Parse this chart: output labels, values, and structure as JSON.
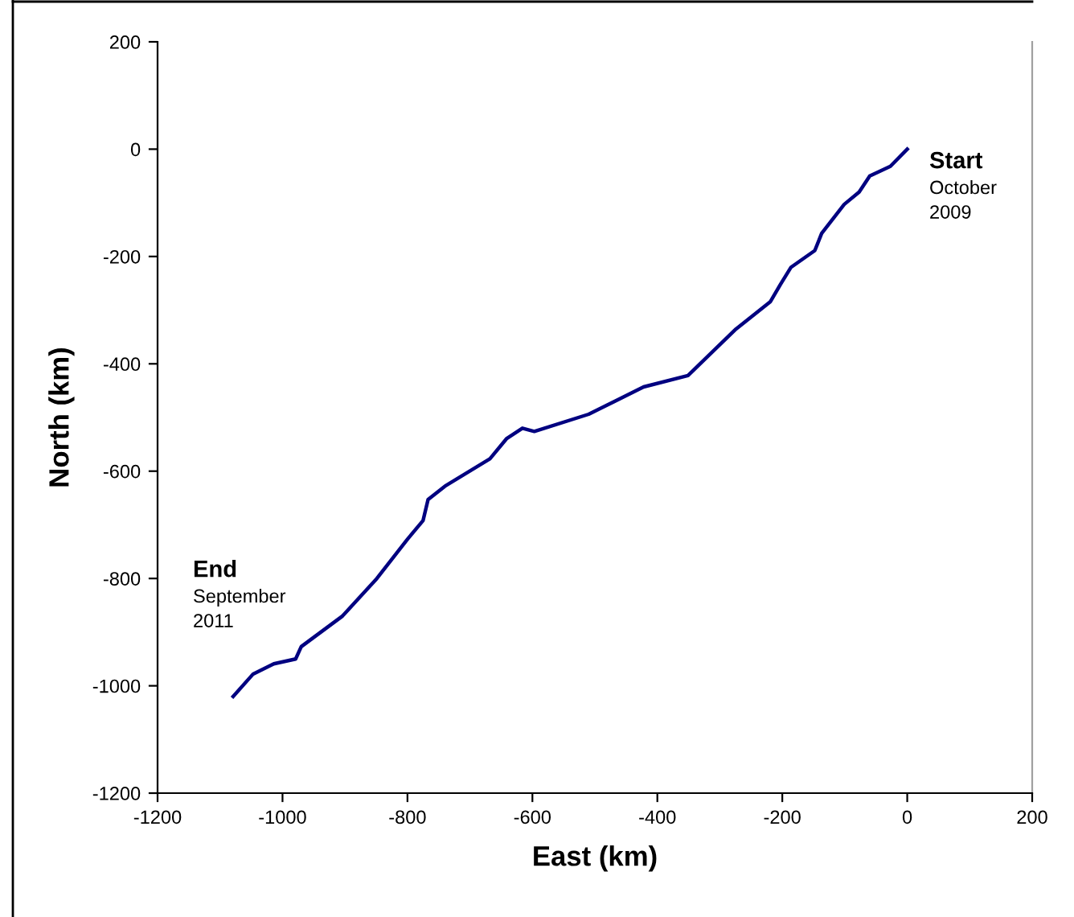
{
  "chart_data": {
    "type": "line",
    "xlabel": "East (km)",
    "ylabel": "North (km)",
    "x": [
      0,
      -27,
      -60,
      -77,
      -101,
      -137,
      -148,
      -186,
      -203,
      -219,
      -274,
      -351,
      -422,
      -510,
      -597,
      -616,
      -641,
      -668,
      -740,
      -767,
      -775,
      -800,
      -849,
      -904,
      -970,
      -979,
      -1014,
      -1047,
      -1079
    ],
    "series": [
      {
        "color": "#000080",
        "values": [
          0,
          -32,
          -50,
          -80,
          -103,
          -157,
          -189,
          -220,
          -252,
          -284,
          -335,
          -422,
          -443,
          -494,
          -526,
          -520,
          -539,
          -577,
          -628,
          -653,
          -692,
          -727,
          -800,
          -870,
          -927,
          -950,
          -959,
          -978,
          -1020
        ]
      }
    ],
    "xlim": [
      -1200,
      200
    ],
    "xticks": [
      -1200,
      -1000,
      -800,
      -600,
      -400,
      -200,
      0,
      200
    ],
    "ylim": [
      -1200,
      200
    ],
    "yticks": [
      -1200,
      -1000,
      -800,
      -600,
      -400,
      -200,
      0,
      200
    ],
    "grid": false,
    "legend": false,
    "marker": "none",
    "line_style": "solid",
    "annotations": [
      "Start\nOctober\n2009",
      "End\nSeptember\n2011"
    ]
  }
}
